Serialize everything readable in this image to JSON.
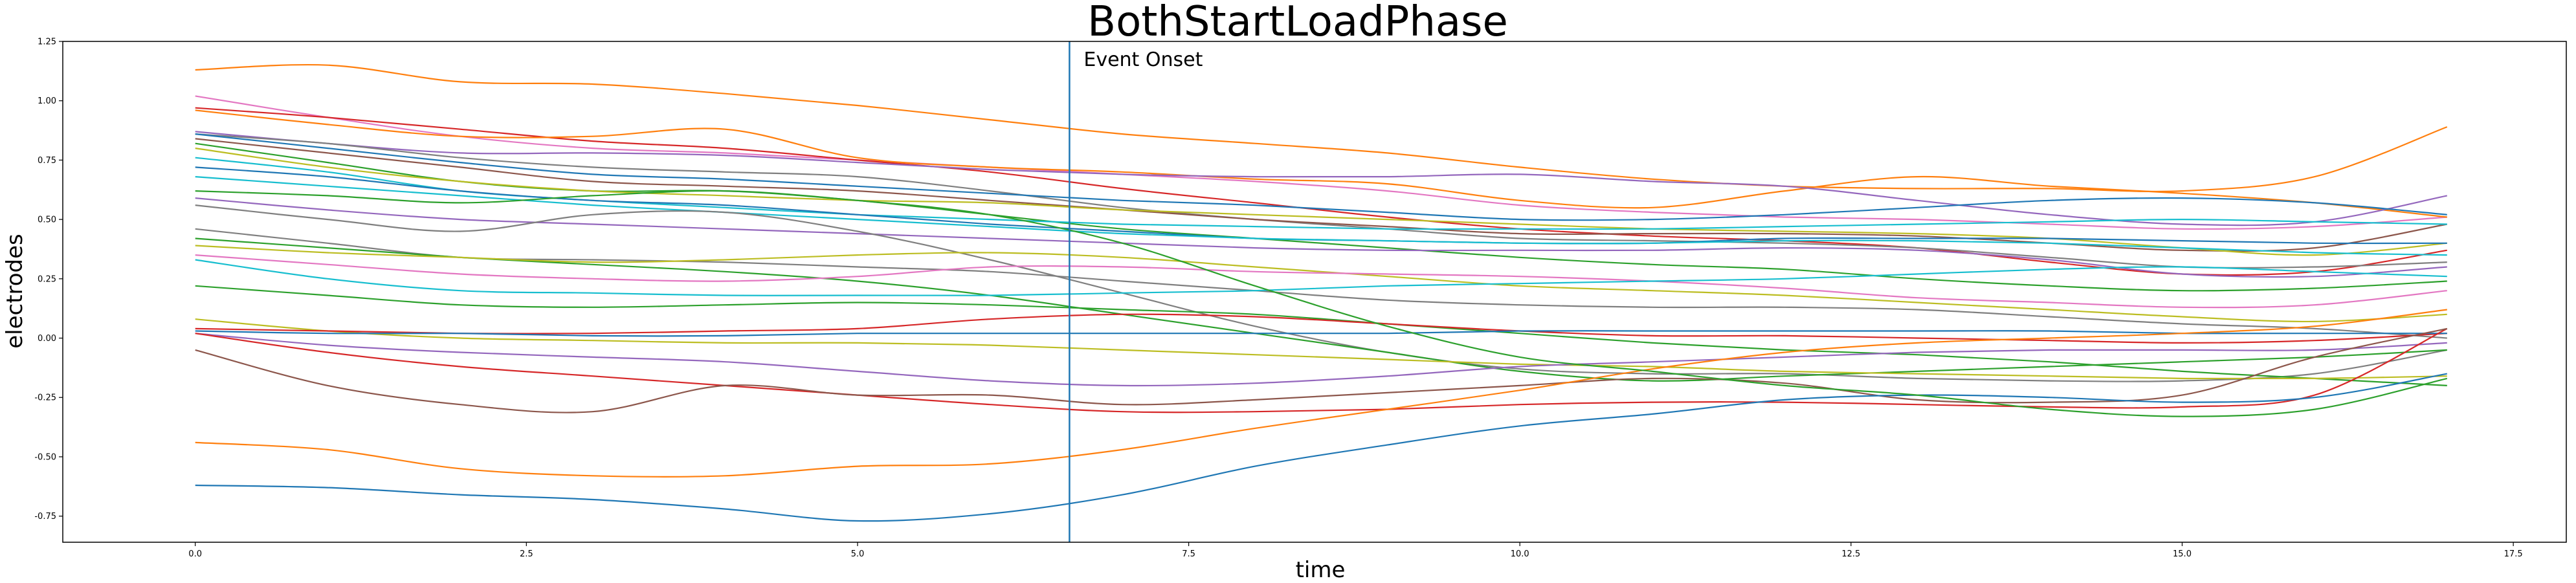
{
  "chart_data": {
    "type": "line",
    "title": "BothStartLoadPhase",
    "xlabel": "time",
    "ylabel": "electrodes",
    "xlim": [
      -1.0,
      17.9
    ],
    "ylim": [
      -0.86,
      1.25
    ],
    "xticks": [
      "0.0",
      "2.5",
      "5.0",
      "7.5",
      "10.0",
      "12.5",
      "15.0",
      "17.5"
    ],
    "yticks": [
      "-0.75",
      "-0.50",
      "-0.25",
      "0.00",
      "0.25",
      "0.50",
      "0.75",
      "1.00",
      "1.25"
    ],
    "grid": false,
    "legend": "none",
    "event_line": {
      "x": 6.6,
      "label": "Event Onset",
      "color": "#1f77b4"
    },
    "x": [
      0,
      1,
      2,
      3,
      4,
      5,
      6,
      7,
      8,
      9,
      10,
      11,
      12,
      13,
      14,
      15,
      16,
      17
    ],
    "series": [
      {
        "color": "#ff7f0e",
        "values": [
          1.13,
          1.15,
          1.08,
          1.07,
          1.03,
          0.98,
          0.92,
          0.86,
          0.82,
          0.78,
          0.72,
          0.67,
          0.64,
          0.63,
          0.63,
          0.62,
          0.68,
          0.89
        ]
      },
      {
        "color": "#e377c2",
        "values": [
          1.02,
          0.93,
          0.85,
          0.8,
          0.78,
          0.75,
          0.72,
          0.69,
          0.66,
          0.62,
          0.56,
          0.53,
          0.51,
          0.5,
          0.48,
          0.46,
          0.47,
          0.51
        ]
      },
      {
        "color": "#d62728",
        "values": [
          0.97,
          0.93,
          0.88,
          0.83,
          0.8,
          0.75,
          0.7,
          0.63,
          0.57,
          0.51,
          0.46,
          0.43,
          0.41,
          0.38,
          0.32,
          0.27,
          0.28,
          0.37
        ]
      },
      {
        "color": "#ff7f0e",
        "values": [
          0.96,
          0.9,
          0.85,
          0.85,
          0.88,
          0.76,
          0.72,
          0.7,
          0.67,
          0.65,
          0.58,
          0.55,
          0.62,
          0.68,
          0.64,
          0.61,
          0.57,
          0.51
        ]
      },
      {
        "color": "#9467bd",
        "values": [
          0.87,
          0.82,
          0.78,
          0.78,
          0.77,
          0.74,
          0.71,
          0.69,
          0.68,
          0.68,
          0.69,
          0.66,
          0.64,
          0.58,
          0.52,
          0.48,
          0.49,
          0.6
        ]
      },
      {
        "color": "#7f7f7f",
        "values": [
          0.86,
          0.82,
          0.76,
          0.72,
          0.7,
          0.68,
          0.62,
          0.55,
          0.5,
          0.46,
          0.42,
          0.41,
          0.4,
          0.38,
          0.34,
          0.3,
          0.3,
          0.32
        ]
      },
      {
        "color": "#1f77b4",
        "values": [
          0.86,
          0.8,
          0.74,
          0.69,
          0.67,
          0.64,
          0.61,
          0.58,
          0.56,
          0.53,
          0.5,
          0.5,
          0.52,
          0.55,
          0.58,
          0.59,
          0.57,
          0.52
        ]
      },
      {
        "color": "#8c564b",
        "values": [
          0.84,
          0.78,
          0.72,
          0.66,
          0.64,
          0.62,
          0.58,
          0.54,
          0.5,
          0.47,
          0.44,
          0.44,
          0.44,
          0.43,
          0.4,
          0.37,
          0.38,
          0.48
        ]
      },
      {
        "color": "#2ca02c",
        "values": [
          0.82,
          0.74,
          0.66,
          0.62,
          0.62,
          0.58,
          0.52,
          0.46,
          0.42,
          0.38,
          0.34,
          0.31,
          0.29,
          0.25,
          0.22,
          0.2,
          0.21,
          0.24
        ]
      },
      {
        "color": "#bcbd22",
        "values": [
          0.8,
          0.72,
          0.66,
          0.62,
          0.6,
          0.58,
          0.57,
          0.54,
          0.52,
          0.5,
          0.48,
          0.46,
          0.45,
          0.44,
          0.42,
          0.38,
          0.35,
          0.4
        ]
      },
      {
        "color": "#17becf",
        "values": [
          0.76,
          0.7,
          0.62,
          0.58,
          0.55,
          0.52,
          0.5,
          0.48,
          0.47,
          0.46,
          0.46,
          0.46,
          0.47,
          0.48,
          0.49,
          0.5,
          0.49,
          0.48
        ]
      },
      {
        "color": "#1f77b4",
        "values": [
          0.72,
          0.68,
          0.62,
          0.58,
          0.56,
          0.52,
          0.48,
          0.45,
          0.42,
          0.41,
          0.4,
          0.4,
          0.42,
          0.42,
          0.42,
          0.41,
          0.4,
          0.4
        ]
      },
      {
        "color": "#17becf",
        "values": [
          0.68,
          0.64,
          0.6,
          0.56,
          0.53,
          0.5,
          0.47,
          0.44,
          0.42,
          0.41,
          0.4,
          0.4,
          0.41,
          0.41,
          0.4,
          0.38,
          0.36,
          0.35
        ]
      },
      {
        "color": "#9467bd",
        "values": [
          0.59,
          0.54,
          0.5,
          0.48,
          0.46,
          0.44,
          0.42,
          0.4,
          0.38,
          0.37,
          0.37,
          0.37,
          0.38,
          0.37,
          0.33,
          0.27,
          0.26,
          0.3
        ]
      },
      {
        "color": "#7f7f7f",
        "values": [
          0.56,
          0.5,
          0.45,
          0.52,
          0.53,
          0.45,
          0.33,
          0.19,
          0.05,
          -0.06,
          -0.13,
          -0.15,
          -0.15,
          -0.17,
          -0.18,
          -0.18,
          -0.15,
          -0.05
        ]
      },
      {
        "color": "#7f7f7f",
        "values": [
          0.46,
          0.4,
          0.34,
          0.33,
          0.32,
          0.3,
          0.28,
          0.24,
          0.2,
          0.16,
          0.14,
          0.13,
          0.13,
          0.12,
          0.09,
          0.06,
          0.04,
          0.0
        ]
      },
      {
        "color": "#2ca02c",
        "values": [
          0.42,
          0.38,
          0.34,
          0.31,
          0.28,
          0.24,
          0.18,
          0.1,
          0.02,
          -0.06,
          -0.14,
          -0.18,
          -0.16,
          -0.14,
          -0.12,
          -0.1,
          -0.08,
          -0.05
        ]
      },
      {
        "color": "#bcbd22",
        "values": [
          0.39,
          0.36,
          0.34,
          0.32,
          0.33,
          0.35,
          0.36,
          0.34,
          0.3,
          0.26,
          0.22,
          0.2,
          0.18,
          0.15,
          0.12,
          0.09,
          0.07,
          0.1
        ]
      },
      {
        "color": "#e377c2",
        "values": [
          0.35,
          0.31,
          0.27,
          0.25,
          0.24,
          0.26,
          0.3,
          0.3,
          0.28,
          0.27,
          0.26,
          0.24,
          0.21,
          0.17,
          0.15,
          0.13,
          0.14,
          0.2
        ]
      },
      {
        "color": "#17becf",
        "values": [
          0.33,
          0.25,
          0.2,
          0.19,
          0.18,
          0.18,
          0.18,
          0.19,
          0.2,
          0.22,
          0.23,
          0.24,
          0.25,
          0.27,
          0.29,
          0.3,
          0.28,
          0.26
        ]
      },
      {
        "color": "#2ca02c",
        "values": [
          0.22,
          0.18,
          0.14,
          0.13,
          0.14,
          0.15,
          0.14,
          0.12,
          0.1,
          0.06,
          0.02,
          -0.02,
          -0.05,
          -0.07,
          -0.1,
          -0.14,
          -0.17,
          -0.2
        ]
      },
      {
        "color": "#bcbd22",
        "values": [
          0.08,
          0.03,
          0.0,
          -0.01,
          -0.02,
          -0.02,
          -0.03,
          -0.05,
          -0.07,
          -0.09,
          -0.11,
          -0.12,
          -0.14,
          -0.15,
          -0.16,
          -0.17,
          -0.17,
          -0.16
        ]
      },
      {
        "color": "#d62728",
        "values": [
          0.04,
          0.03,
          0.02,
          0.02,
          0.03,
          0.04,
          0.08,
          0.1,
          0.09,
          0.06,
          0.03,
          0.01,
          0.01,
          0.0,
          -0.01,
          -0.02,
          -0.01,
          0.02
        ]
      },
      {
        "color": "#1f77b4",
        "values": [
          0.03,
          0.02,
          0.02,
          0.01,
          0.01,
          0.02,
          0.02,
          0.02,
          0.02,
          0.02,
          0.03,
          0.03,
          0.03,
          0.03,
          0.03,
          0.02,
          0.02,
          0.02
        ]
      },
      {
        "color": "#9467bd",
        "values": [
          0.02,
          -0.03,
          -0.06,
          -0.08,
          -0.1,
          -0.14,
          -0.18,
          -0.2,
          -0.19,
          -0.16,
          -0.12,
          -0.1,
          -0.08,
          -0.06,
          -0.05,
          -0.05,
          -0.05,
          -0.02
        ]
      },
      {
        "color": "#d62728",
        "values": [
          0.02,
          -0.06,
          -0.12,
          -0.16,
          -0.2,
          -0.24,
          -0.28,
          -0.31,
          -0.31,
          -0.3,
          -0.28,
          -0.27,
          -0.27,
          -0.28,
          -0.29,
          -0.29,
          -0.24,
          0.04
        ]
      },
      {
        "color": "#8c564b",
        "values": [
          -0.05,
          -0.2,
          -0.28,
          -0.31,
          -0.2,
          -0.24,
          -0.24,
          -0.28,
          -0.26,
          -0.23,
          -0.2,
          -0.17,
          -0.19,
          -0.26,
          -0.27,
          -0.24,
          -0.08,
          0.04
        ]
      },
      {
        "color": "#ff7f0e",
        "values": [
          -0.44,
          -0.47,
          -0.55,
          -0.58,
          -0.58,
          -0.54,
          -0.53,
          -0.47,
          -0.38,
          -0.3,
          -0.22,
          -0.13,
          -0.06,
          -0.02,
          0.0,
          0.02,
          0.05,
          0.12
        ]
      },
      {
        "color": "#1f77b4",
        "values": [
          -0.62,
          -0.63,
          -0.66,
          -0.68,
          -0.72,
          -0.77,
          -0.74,
          -0.66,
          -0.54,
          -0.45,
          -0.37,
          -0.32,
          -0.26,
          -0.24,
          -0.25,
          -0.27,
          -0.25,
          -0.15
        ]
      },
      {
        "color": "#2ca02c",
        "values": [
          0.62,
          0.6,
          0.57,
          0.6,
          0.62,
          0.58,
          0.52,
          0.4,
          0.22,
          0.05,
          -0.08,
          -0.14,
          -0.2,
          -0.24,
          -0.3,
          -0.33,
          -0.3,
          -0.17
        ]
      }
    ]
  }
}
